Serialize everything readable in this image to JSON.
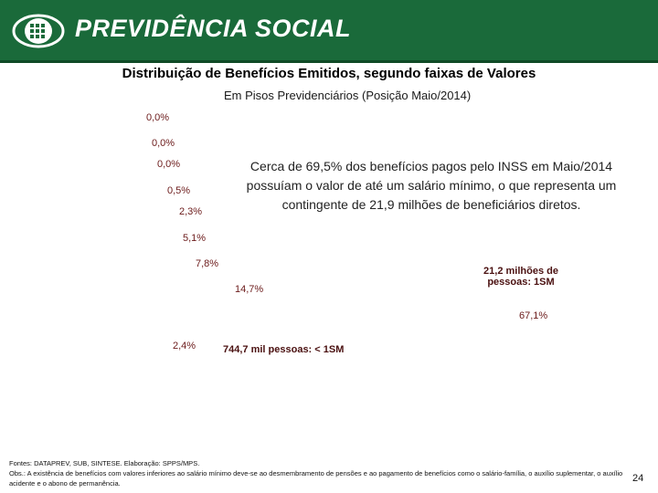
{
  "header": {
    "brand": "PREVIDÊNCIA SOCIAL",
    "logo_icon": "previdencia-social-logo-icon",
    "background_color": "#1a6a3a"
  },
  "chart_data": {
    "type": "pie",
    "title": "Distribuição de Benefícios Emitidos, segundo faixas de Valores",
    "subtitle": "Em Pisos Previdenciários (Posição Maio/2014)",
    "slices": [
      {
        "label": "0,0%",
        "value": 0.0
      },
      {
        "label": "0,0%",
        "value": 0.0
      },
      {
        "label": "0,0%",
        "value": 0.0
      },
      {
        "label": "0,5%",
        "value": 0.5
      },
      {
        "label": "2,3%",
        "value": 2.3
      },
      {
        "label": "5,1%",
        "value": 5.1
      },
      {
        "label": "7,8%",
        "value": 7.8
      },
      {
        "label": "14,7%",
        "value": 14.7
      },
      {
        "label": "67,1%",
        "value": 67.1
      },
      {
        "label": "2,4%",
        "value": 2.4
      }
    ],
    "annotations": {
      "one_sm": "21,2 milhões de pessoas: 1SM",
      "below_sm": "744,7  mil pessoas: < 1SM"
    },
    "note": "Cerca de 69,5% dos benefícios pagos pelo INSS em Maio/2014 possuíam o valor de até um salário mínimo, o que representa um contingente de 21,9 milhões de beneficiários diretos."
  },
  "footer": {
    "sources": "Fontes: DATAPREV, SUB, SINTESE. Elaboração: SPPS/MPS.",
    "obs": "Obs.: A existência de benefícios com valores inferiores ao salário mínimo deve-se ao desmembramento de pensões e ao pagamento de benefícios como o salário-família, o auxílio suplementar, o auxílio acidente e o abono de permanência."
  },
  "page_number": "24"
}
